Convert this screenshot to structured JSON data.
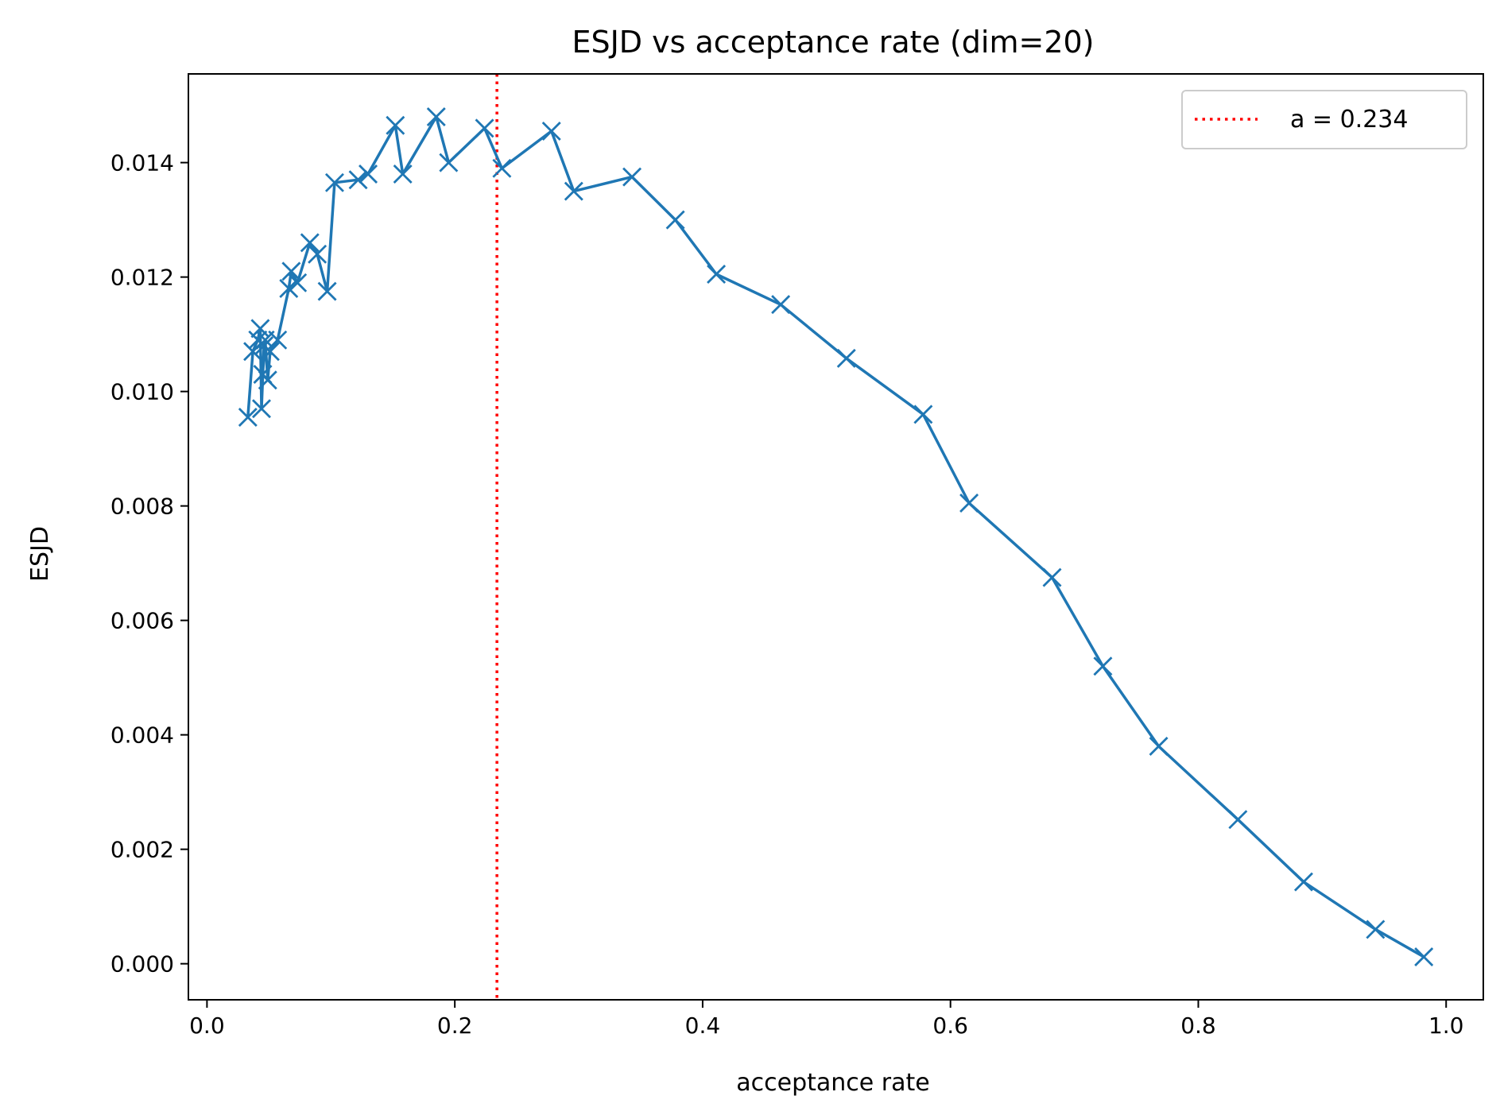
{
  "chart_data": {
    "type": "line",
    "title": "ESJD vs acceptance rate (dim=20)",
    "xlabel": "acceptance rate",
    "ylabel": "ESJD",
    "xlim": [
      -0.015,
      1.03
    ],
    "ylim": [
      -0.00063,
      0.01555
    ],
    "grid": false,
    "legend_position": "top-right",
    "x_ticks": [
      0.0,
      0.2,
      0.4,
      0.6,
      0.8,
      1.0
    ],
    "x_tick_labels": [
      "0.0",
      "0.2",
      "0.4",
      "0.6",
      "0.8",
      "1.0"
    ],
    "y_ticks": [
      0.0,
      0.002,
      0.004,
      0.006,
      0.008,
      0.01,
      0.012,
      0.014
    ],
    "y_tick_labels": [
      "0.000",
      "0.002",
      "0.004",
      "0.006",
      "0.008",
      "0.010",
      "0.012",
      "0.014"
    ],
    "series": [
      {
        "name": "ESJD",
        "color": "#1f77b4",
        "marker": "x",
        "x": [
          0.033,
          0.037,
          0.041,
          0.043,
          0.044,
          0.046,
          0.045,
          0.047,
          0.049,
          0.051,
          0.057,
          0.066,
          0.068,
          0.073,
          0.083,
          0.089,
          0.097,
          0.103,
          0.122,
          0.13,
          0.152,
          0.158,
          0.185,
          0.195,
          0.224,
          0.238,
          0.278,
          0.296,
          0.343,
          0.378,
          0.411,
          0.463,
          0.516,
          0.578,
          0.615,
          0.682,
          0.723,
          0.768,
          0.832,
          0.885,
          0.943,
          0.982
        ],
        "y": [
          0.00955,
          0.0107,
          0.0109,
          0.0111,
          0.0097,
          0.0108,
          0.0103,
          0.0109,
          0.0102,
          0.0107,
          0.0109,
          0.0118,
          0.0121,
          0.0119,
          0.0126,
          0.0124,
          0.01175,
          0.01365,
          0.0137,
          0.0138,
          0.01465,
          0.0138,
          0.0148,
          0.014,
          0.0146,
          0.0139,
          0.01455,
          0.0135,
          0.01375,
          0.013,
          0.01205,
          0.01152,
          0.01058,
          0.0096,
          0.00805,
          0.00675,
          0.0052,
          0.0038,
          0.00252,
          0.00143,
          0.0006,
          0.00012
        ]
      }
    ],
    "reference_line": {
      "label": "a = 0.234",
      "x": 0.234,
      "color": "#ff0000",
      "style": "dotted"
    }
  }
}
